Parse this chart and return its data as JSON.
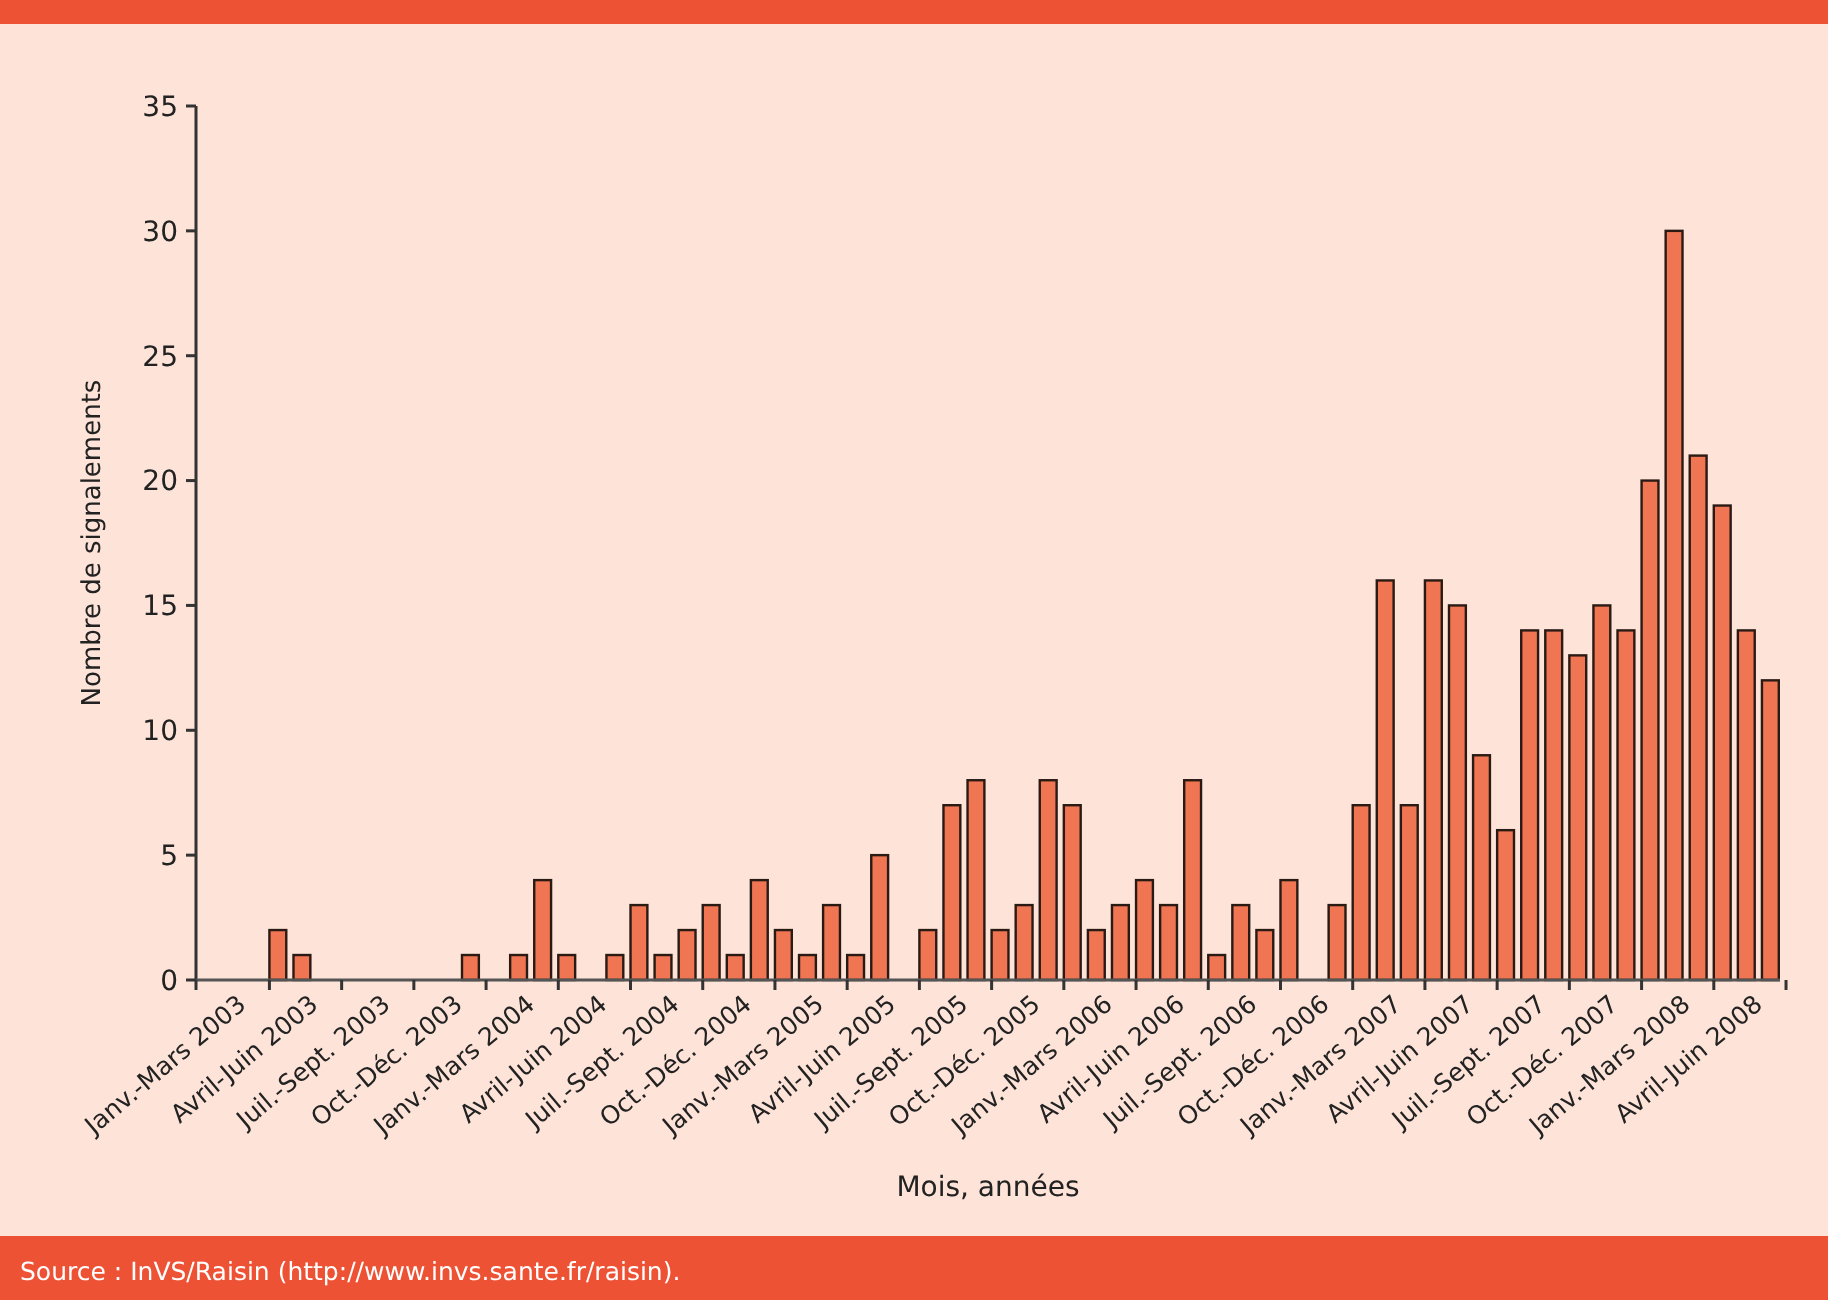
{
  "chart_data": {
    "type": "bar",
    "xlabel": "Mois, années",
    "ylabel": "Nombre de signalements",
    "categories": [
      null,
      "Janv.-Mars 2003",
      null,
      null,
      "Avril-Juin 2003",
      null,
      null,
      "Juil.-Sept. 2003",
      null,
      null,
      "Oct.-Déc. 2003",
      null,
      null,
      "Janv.-Mars 2004",
      null,
      null,
      "Avril-Juin 2004",
      null,
      null,
      "Juil.-Sept. 2004",
      null,
      null,
      "Oct.-Déc. 2004",
      null,
      null,
      "Janv.-Mars 2005",
      null,
      null,
      "Avril-Juin 2005",
      null,
      null,
      "Juil.-Sept. 2005",
      null,
      null,
      "Oct.-Déc. 2005",
      null,
      null,
      "Janv.-Mars 2006",
      null,
      null,
      "Avril-Juin 2006",
      null,
      null,
      "Juil.-Sept. 2006",
      null,
      null,
      "Oct.-Déc. 2006",
      null,
      null,
      "Janv.-Mars 2007",
      null,
      null,
      "Avril-Juin 2007",
      null,
      null,
      "Juil.-Sept. 2007",
      null,
      null,
      "Oct.-Déc. 2007",
      null,
      null,
      "Janv.-Mars 2008",
      null,
      null,
      "Avril-Juin 2008",
      null
    ],
    "values": [
      0,
      0,
      0,
      2,
      1,
      0,
      0,
      0,
      0,
      0,
      0,
      1,
      0,
      1,
      4,
      1,
      0,
      1,
      3,
      1,
      2,
      3,
      1,
      4,
      2,
      1,
      3,
      1,
      5,
      0,
      2,
      7,
      8,
      2,
      3,
      8,
      7,
      2,
      3,
      4,
      3,
      8,
      1,
      3,
      2,
      4,
      0,
      3,
      7,
      16,
      7,
      16,
      15,
      9,
      6,
      14,
      14,
      13,
      15,
      14,
      20,
      30,
      21,
      19,
      14,
      12
    ],
    "color": "#f07553",
    "ylim": [
      0,
      35
    ],
    "yticks": [
      0,
      5,
      10,
      15,
      20,
      25,
      30,
      35
    ],
    "grid": false,
    "annotations": [
      "Source : InVS/Raisin (http://www.invs.sante.fr/raisin)."
    ]
  }
}
